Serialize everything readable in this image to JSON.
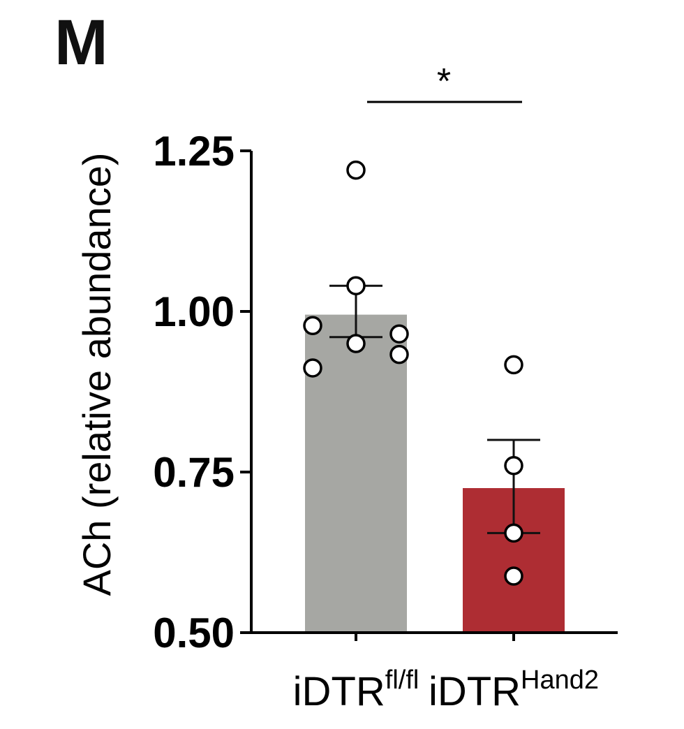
{
  "panel_label": "M",
  "chart_data": {
    "type": "bar",
    "title": "",
    "ylabel": "ACh (relative abundance)",
    "xlabel": "",
    "ylim": [
      0.5,
      1.25
    ],
    "yticks": [
      "0.50",
      "0.75",
      "1.00",
      "1.25"
    ],
    "yticks_values": [
      0.5,
      0.75,
      1.0,
      1.25
    ],
    "categories": [
      {
        "base": "iDTR",
        "sup": "fl/fl"
      },
      {
        "base": "iDTR",
        "sup": "Hand2"
      }
    ],
    "values": [
      0.995,
      0.725
    ],
    "error_upper": [
      1.04,
      0.8
    ],
    "error_lower": [
      0.96,
      0.655
    ],
    "colors": [
      "#a6a7a3",
      "#ae2d33"
    ],
    "points": [
      [
        1.22,
        1.04,
        0.978,
        0.95,
        0.965,
        0.933,
        0.912
      ],
      [
        0.917,
        0.76,
        0.655,
        0.588
      ]
    ],
    "significance": {
      "between": [
        0,
        1
      ],
      "label": "*"
    },
    "grid": false,
    "legend": "none"
  }
}
